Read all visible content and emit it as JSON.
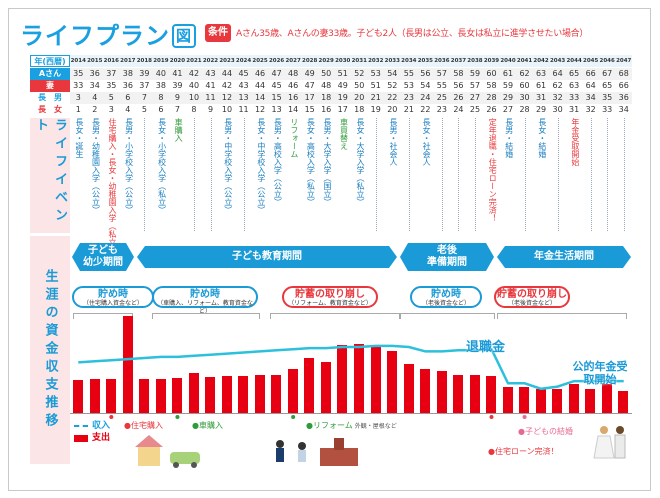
{
  "title": "ライフプラン",
  "title_badge": "図",
  "condition": {
    "tag": "条件",
    "text": "Aさん35歳、Aさんの妻33歳。子ども2人（長男は公立、長女は私立に進学させたい場合）"
  },
  "row_labels": {
    "year": "年(西暦)",
    "a": "Aさん",
    "wife": "妻",
    "son": "長　男",
    "daughter": "長　女"
  },
  "years": [
    "2014",
    "2015",
    "2016",
    "2017",
    "2018",
    "2019",
    "2020",
    "2021",
    "2022",
    "2023",
    "2024",
    "2025",
    "2026",
    "2027",
    "2028",
    "2029",
    "2030",
    "2031",
    "2032",
    "2033",
    "2034",
    "2035",
    "2036",
    "2037",
    "2038",
    "2039",
    "2040",
    "2041",
    "2042",
    "2043",
    "2044",
    "2045",
    "2046",
    "2047"
  ],
  "ages_a": [
    "35",
    "36",
    "37",
    "38",
    "39",
    "40",
    "41",
    "42",
    "43",
    "44",
    "45",
    "46",
    "47",
    "48",
    "49",
    "50",
    "51",
    "52",
    "53",
    "54",
    "55",
    "56",
    "57",
    "58",
    "59",
    "60",
    "61",
    "62",
    "63",
    "64",
    "65",
    "66",
    "67",
    "68"
  ],
  "ages_wife": [
    "33",
    "34",
    "35",
    "36",
    "37",
    "38",
    "39",
    "40",
    "41",
    "42",
    "43",
    "44",
    "45",
    "46",
    "47",
    "48",
    "49",
    "50",
    "51",
    "52",
    "53",
    "54",
    "55",
    "56",
    "57",
    "58",
    "59",
    "60",
    "61",
    "62",
    "63",
    "64",
    "65",
    "66"
  ],
  "ages_son": [
    "3",
    "4",
    "5",
    "6",
    "7",
    "8",
    "9",
    "10",
    "11",
    "12",
    "13",
    "14",
    "15",
    "16",
    "17",
    "18",
    "19",
    "20",
    "21",
    "22",
    "23",
    "24",
    "25",
    "26",
    "27",
    "28",
    "29",
    "30",
    "31",
    "32",
    "33",
    "34",
    "35",
    "36"
  ],
  "ages_daughter": [
    "1",
    "2",
    "3",
    "4",
    "5",
    "6",
    "7",
    "8",
    "9",
    "10",
    "11",
    "12",
    "13",
    "14",
    "15",
    "16",
    "17",
    "18",
    "19",
    "20",
    "21",
    "22",
    "23",
    "24",
    "25",
    "26",
    "27",
    "28",
    "29",
    "30",
    "31",
    "32",
    "33",
    "34"
  ],
  "section_labels": {
    "events": "ライフイベント",
    "cashflow": "生涯の資金収支推移"
  },
  "events": [
    {
      "col": 0,
      "text": "長女・誕生",
      "color": "blue"
    },
    {
      "col": 1,
      "text": "長男・幼稚園入学（公立）",
      "color": "blue"
    },
    {
      "col": 2,
      "text": "住宅購入・長女・幼稚園入学（私立）",
      "color": "red"
    },
    {
      "col": 3,
      "text": "長男・小学校入学（公立）",
      "color": "blue"
    },
    {
      "col": 5,
      "text": "長女・小学校入学（私立）",
      "color": "blue"
    },
    {
      "col": 6,
      "text": "車購入",
      "color": "green"
    },
    {
      "col": 9,
      "text": "長男・中学校入学（公立）",
      "color": "blue"
    },
    {
      "col": 11,
      "text": "長女・中学校入学（公立）",
      "color": "blue"
    },
    {
      "col": 12,
      "text": "長男・高校入学（公立）",
      "color": "blue"
    },
    {
      "col": 13,
      "text": "リフォーム",
      "color": "green"
    },
    {
      "col": 14,
      "text": "長女・高校入学（私立）",
      "color": "blue"
    },
    {
      "col": 15,
      "text": "長男・大学入学（国立）",
      "color": "blue"
    },
    {
      "col": 16,
      "text": "車買替え",
      "color": "green"
    },
    {
      "col": 17,
      "text": "長女・大学入学（私立）",
      "color": "blue"
    },
    {
      "col": 19,
      "text": "長男・社会人",
      "color": "blue"
    },
    {
      "col": 21,
      "text": "長女・社会人",
      "color": "blue"
    },
    {
      "col": 25,
      "text": "定年退職・住宅ローン完済！",
      "color": "red"
    },
    {
      "col": 26,
      "text": "長男・結婚",
      "color": "blue"
    },
    {
      "col": 28,
      "text": "長女・結婚",
      "color": "blue"
    },
    {
      "col": 30,
      "text": "年金受取開始",
      "color": "red"
    }
  ],
  "periods": [
    {
      "label": "子ども幼少期間",
      "line1": "子ども",
      "line2": "幼少期間"
    },
    {
      "label": "子ども教育期間"
    },
    {
      "label": "老後準備期間",
      "line1": "老後",
      "line2": "準備期間"
    },
    {
      "label": "年金生活期間"
    }
  ],
  "savings": [
    {
      "title": "貯め時",
      "sub": "（住宅購入資金など）",
      "color": "blue"
    },
    {
      "title": "貯め時",
      "sub": "（車購入、リフォーム、教育資金など）",
      "color": "blue"
    },
    {
      "title": "貯蓄の取り崩し",
      "sub": "（リフォーム、教育資金など）",
      "color": "red"
    },
    {
      "title": "貯め時",
      "sub": "（老後資金など）",
      "color": "blue"
    },
    {
      "title": "貯蓄の取り崩し",
      "sub": "（老後資金など）",
      "color": "red"
    }
  ],
  "chart_data": {
    "type": "bar",
    "categories": [
      "2014",
      "2015",
      "2016",
      "2017",
      "2018",
      "2019",
      "2020",
      "2021",
      "2022",
      "2023",
      "2024",
      "2025",
      "2026",
      "2027",
      "2028",
      "2029",
      "2030",
      "2031",
      "2032",
      "2033",
      "2034",
      "2035",
      "2036",
      "2037",
      "2038",
      "2039",
      "2040",
      "2041",
      "2042",
      "2043",
      "2044",
      "2045",
      "2046",
      "2047"
    ],
    "series": [
      {
        "name": "収入",
        "type": "line",
        "values": [
          46,
          47,
          48,
          49,
          50,
          51,
          51,
          52,
          53,
          54,
          55,
          56,
          57,
          58,
          59,
          59,
          60,
          60,
          61,
          61,
          60,
          56,
          56,
          57,
          57,
          58,
          27,
          27,
          22,
          24,
          29,
          29,
          29,
          29
        ]
      },
      {
        "name": "支出",
        "type": "bar",
        "values": [
          30,
          31,
          31,
          88,
          31,
          31,
          32,
          36,
          33,
          34,
          34,
          35,
          35,
          40,
          50,
          46,
          62,
          63,
          61,
          56,
          45,
          40,
          38,
          35,
          35,
          34,
          24,
          24,
          22,
          22,
          26,
          22,
          26,
          20
        ]
      }
    ],
    "ylim": [
      0,
      100
    ],
    "legend": "bottom-left"
  },
  "legend": {
    "income": "収入",
    "expense": "支出"
  },
  "markers": {
    "house": "住宅購入",
    "car": "車購入",
    "reform": "リフォーム",
    "reform_sub": "外観・屋根など",
    "loan": "住宅ローン完済！",
    "wedding": "子どもの結婚",
    "retire": "退職金",
    "pension": "公的年金受取開始"
  },
  "colors": {
    "accent": "#1aa0e0",
    "red": "#e60012",
    "pink_bg": "#fbe5e6",
    "line": "#2cc0dc"
  }
}
